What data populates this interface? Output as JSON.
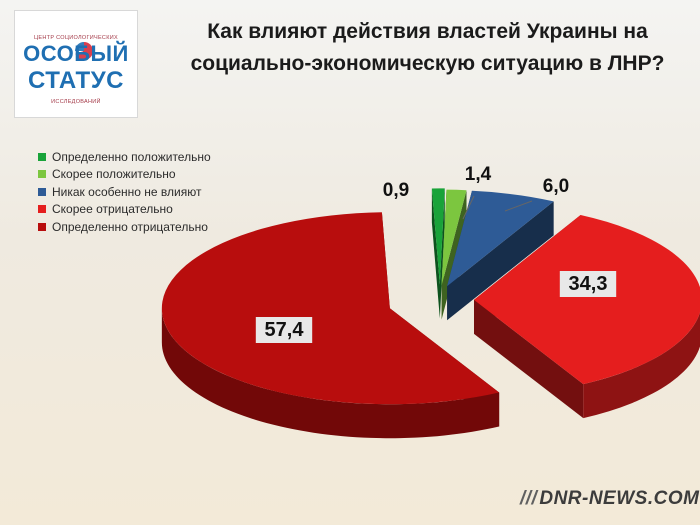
{
  "logo": {
    "top_text": "центр социологических",
    "line1": "ОСОБЫЙ",
    "line2": "СТАТУС",
    "bottom_text": "исследований"
  },
  "chart_data": {
    "type": "pie",
    "title": "Как влияют действия властей Украины на социально-экономическую ситуацию в ЛНР?",
    "legend_position": "top-left",
    "categories": [
      "Определенно положительно",
      "Скорее положительно",
      "Никак особенно не влияют",
      "Скорее отрицательно",
      "Определенно отрицательно"
    ],
    "values": [
      0.9,
      1.4,
      6.0,
      34.3,
      57.4
    ],
    "value_labels": [
      "0,9",
      "1,4",
      "6,0",
      "34,3",
      "57,4"
    ],
    "colors": [
      "#19a339",
      "#7cc63f",
      "#2e5b96",
      "#e51e1e",
      "#b80d0d"
    ]
  },
  "watermark": "DNR-NEWS.COM"
}
